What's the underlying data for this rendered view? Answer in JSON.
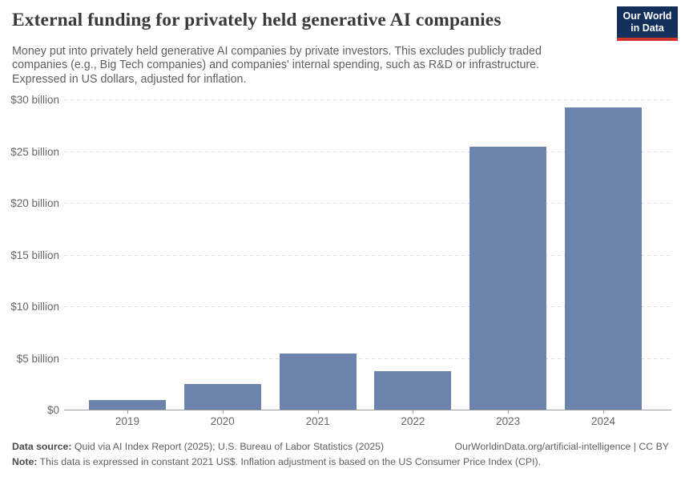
{
  "header": {
    "title": "External funding for privately held generative AI companies",
    "subtitle_line1": "Money put into privately held generative AI companies by private investors. This excludes publicly traded",
    "subtitle_line2": "companies (e.g., Big Tech companies) and companies' internal spending, such as R&D or infrastructure.",
    "subtitle_line3": "Expressed in US dollars, adjusted for inflation.",
    "logo": {
      "line1": "Our World",
      "line2": "in Data"
    }
  },
  "chart_data": {
    "type": "bar",
    "title": "External funding for privately held generative AI companies",
    "categories": [
      "2019",
      "2020",
      "2021",
      "2022",
      "2023",
      "2024"
    ],
    "values": [
      0.9,
      2.5,
      5.4,
      3.7,
      25.4,
      29.2
    ],
    "unit": "billion US$ (constant 2021)",
    "xlabel": "",
    "ylabel": "",
    "ylim": [
      0,
      30
    ],
    "grid": true,
    "legend": "none",
    "bar_color": "#6c84ad",
    "yticks": [
      {
        "value": 0,
        "label": "$0"
      },
      {
        "value": 5,
        "label": "$5 billion"
      },
      {
        "value": 10,
        "label": "$10 billion"
      },
      {
        "value": 15,
        "label": "$15 billion"
      },
      {
        "value": 20,
        "label": "$20 billion"
      },
      {
        "value": 25,
        "label": "$25 billion"
      },
      {
        "value": 30,
        "label": "$30 billion"
      }
    ]
  },
  "footer": {
    "source_label": "Data source:",
    "source_text": " Quid via AI Index Report (2025); U.S. Bureau of Labor Statistics (2025)",
    "attribution": "OurWorldinData.org/artificial-intelligence | CC BY",
    "note_label": "Note:",
    "note_text": " This data is expressed in constant 2021 US$. Inflation adjustment is based on the US Consumer Price Index (CPI)."
  }
}
